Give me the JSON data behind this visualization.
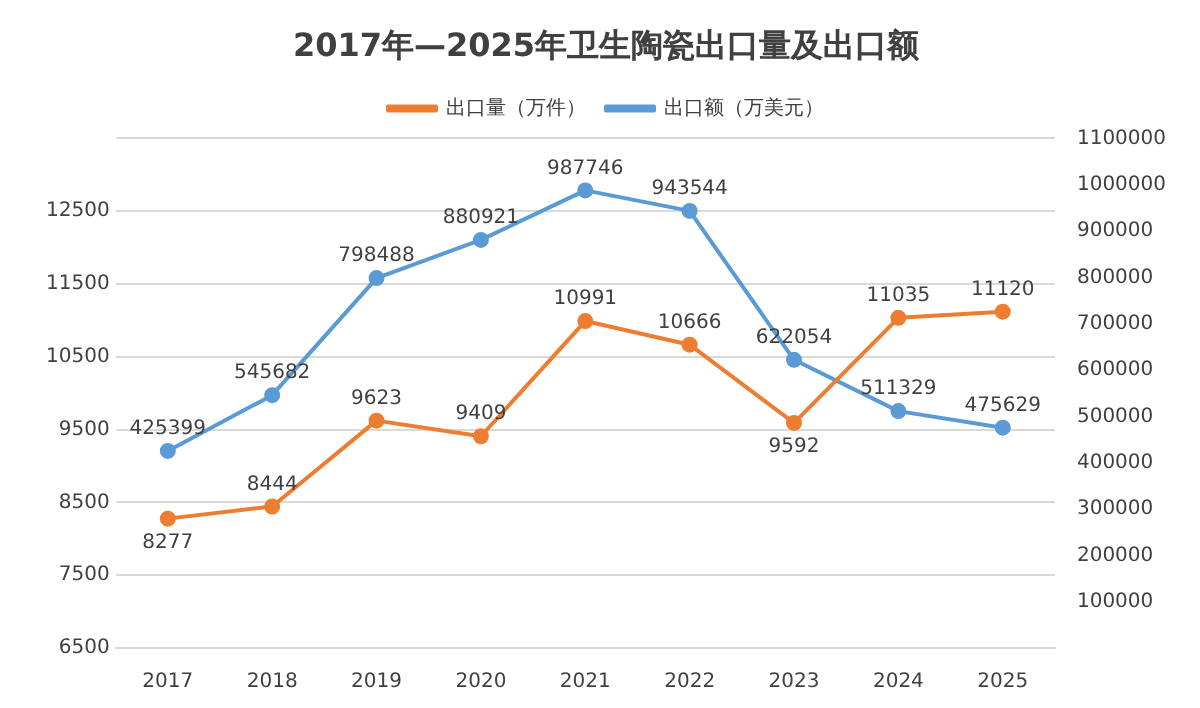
{
  "chart_data": {
    "type": "line",
    "title": "2017年—2025年卫生陶瓷出口量及出口额",
    "categories": [
      "2017",
      "2018",
      "2019",
      "2020",
      "2021",
      "2022",
      "2023",
      "2024",
      "2025"
    ],
    "series": [
      {
        "name": "出口量（万件）",
        "color": "#ed7d31",
        "values": [
          8277,
          8444,
          9623,
          9409,
          10991,
          10666,
          9592,
          11035,
          11120
        ]
      },
      {
        "name": "出口额（万美元）",
        "color": "#5b9bd5",
        "axis": "y2",
        "values": [
          425399,
          545682,
          798488,
          880921,
          987746,
          943544,
          622054,
          511329,
          475629
        ]
      }
    ],
    "ylim": [
      6500,
      13500
    ],
    "yticks": [
      6500,
      7500,
      8500,
      9500,
      10500,
      11500,
      12500,
      {
        "value": 13500,
        "label": null
      }
    ],
    "y2lim": [
      0,
      1100000
    ],
    "y2ticks": [
      100000,
      200000,
      300000,
      400000,
      500000,
      600000,
      700000,
      800000,
      900000,
      1000000,
      1100000
    ],
    "grid": "y",
    "legend": "top",
    "marker": "circle",
    "line_style": "solid",
    "data_labels": true
  }
}
